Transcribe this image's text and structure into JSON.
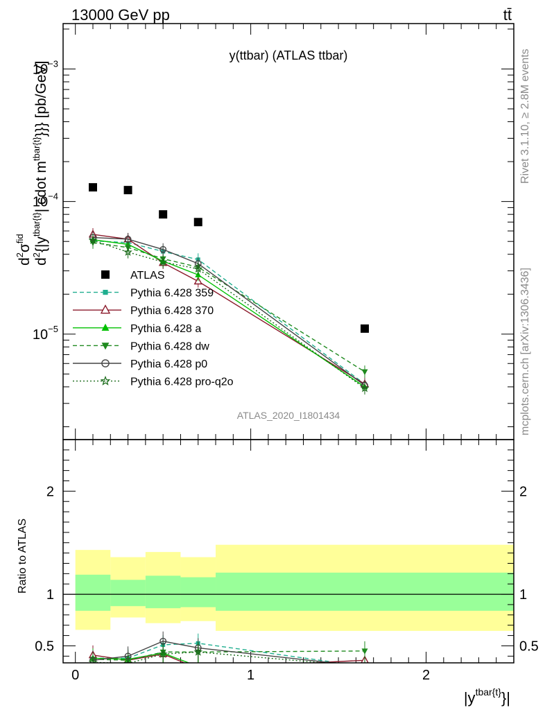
{
  "header": {
    "energy_label": "13000 GeV pp",
    "process_label": "tt̄"
  },
  "side_labels": {
    "rivet": "Rivet 3.1.10, ≥ 2.8M events",
    "mcplots": "mcplots.cern.ch [arXiv:1306.3436]"
  },
  "chart_data": [
    {
      "type": "scatter",
      "title": "y(ttbar) (ATLAS ttbar)",
      "analysis_id": "ATLAS_2020_I1801434",
      "ylabel_parts": {
        "num": "d",
        "num_sup": "2",
        "sigma": "σ",
        "fid_sup": "fid",
        "den": "d",
        "den_sup": "2",
        "den_rest": "{|y",
        "tb_sup": "tbar{t}",
        "mid": "| cdot m",
        "end": "}}} [pb/GeV]"
      },
      "yscale": "log",
      "xlim": [
        -0.07,
        2.5
      ],
      "ylim": [
        1.6e-06,
        0.0022
      ],
      "y_ticks": [
        {
          "value": 0.001,
          "base": "10",
          "exp": "−3"
        },
        {
          "value": 0.0001,
          "base": "10",
          "exp": "−4"
        },
        {
          "value": 1e-05,
          "base": "10",
          "exp": "−5"
        }
      ],
      "x": [
        0.1,
        0.3,
        0.5,
        0.7,
        1.65
      ],
      "series": [
        {
          "name": "ATLAS",
          "color": "#000000",
          "marker": "square-filled",
          "line": "none",
          "values": [
            0.000128,
            0.000122,
            8e-05,
            7e-05,
            1.1e-05
          ]
        },
        {
          "name": "Pythia 6.428 359",
          "color": "#1fae8f",
          "marker": "square-small",
          "line": "dashed",
          "values": [
            5.05e-05,
            4.9e-05,
            4.2e-05,
            3.65e-05,
            4.2e-06
          ]
        },
        {
          "name": "Pythia 6.428 370",
          "color": "#8b1a2b",
          "marker": "triangle-open",
          "line": "solid",
          "values": [
            5.65e-05,
            5.2e-05,
            3.45e-05,
            2.5e-05,
            4.2e-06
          ]
        },
        {
          "name": "Pythia 6.428 a",
          "color": "#00c000",
          "marker": "triangle-filled",
          "line": "solid",
          "values": [
            5.15e-05,
            4.75e-05,
            3.55e-05,
            2.8e-05,
            4e-06
          ]
        },
        {
          "name": "Pythia 6.428 dw",
          "color": "#1f8a1f",
          "marker": "triangle-down-filled",
          "line": "dashed",
          "values": [
            4.9e-05,
            4.5e-05,
            3.7e-05,
            3.2e-05,
            5.2e-06
          ]
        },
        {
          "name": "Pythia 6.428 p0",
          "color": "#444444",
          "marker": "circle-open",
          "line": "solid",
          "values": [
            5.35e-05,
            5.2e-05,
            4.35e-05,
            3.4e-05,
            4.1e-06
          ]
        },
        {
          "name": "Pythia 6.428 pro-q2o",
          "color": "#1a6b1a",
          "marker": "star-open",
          "line": "dotted",
          "values": [
            5.1e-05,
            4.15e-05,
            3.5e-05,
            3.1e-05,
            3.9e-06
          ]
        }
      ]
    },
    {
      "type": "scatter",
      "ylabel": "Ratio to ATLAS",
      "xlabel_base": "|y",
      "xlabel_sup": "tbar{t}",
      "xlabel_end": "}|",
      "xlim": [
        -0.07,
        2.5
      ],
      "ylim": [
        0.335,
        2.5
      ],
      "x_ticks": [
        "0",
        "1",
        "2"
      ],
      "y_ticks": [
        "0.5",
        "1",
        "2"
      ],
      "bands": [
        {
          "x": [
            0.0,
            0.2
          ],
          "outer": [
            0.655,
            1.43
          ],
          "inner": [
            0.84,
            1.19
          ]
        },
        {
          "x": [
            0.2,
            0.4
          ],
          "outer": [
            0.775,
            1.36
          ],
          "inner": [
            0.885,
            1.14
          ]
        },
        {
          "x": [
            0.4,
            0.6
          ],
          "outer": [
            0.72,
            1.41
          ],
          "inner": [
            0.865,
            1.18
          ]
        },
        {
          "x": [
            0.6,
            0.8
          ],
          "outer": [
            0.74,
            1.36
          ],
          "inner": [
            0.875,
            1.165
          ]
        },
        {
          "x": [
            0.8,
            2.5
          ],
          "outer": [
            0.645,
            1.48
          ],
          "inner": [
            0.84,
            1.21
          ]
        }
      ],
      "band_colors": {
        "outer": "#ffff99",
        "inner": "#99ff99"
      },
      "x": [
        0.1,
        0.3,
        0.5,
        0.7,
        1.65
      ],
      "series": [
        {
          "name": "Pythia 6.428 359",
          "values": [
            0.38,
            0.38,
            0.51,
            0.525,
            0.3
          ]
        },
        {
          "name": "Pythia 6.428 370",
          "values": [
            0.41,
            0.36,
            0.42,
            0.28,
            0.36
          ]
        },
        {
          "name": "Pythia 6.428 a",
          "values": [
            0.38,
            0.37,
            0.43,
            0.3,
            0.3
          ]
        },
        {
          "name": "Pythia 6.428 dw",
          "values": [
            0.37,
            0.36,
            0.44,
            0.44,
            0.45
          ]
        },
        {
          "name": "Pythia 6.428 p0",
          "values": [
            0.36,
            0.4,
            0.545,
            0.48,
            0.3
          ]
        },
        {
          "name": "Pythia 6.428 pro-q2o",
          "values": [
            0.34,
            0.33,
            0.42,
            0.44,
            0.3
          ]
        }
      ]
    }
  ]
}
